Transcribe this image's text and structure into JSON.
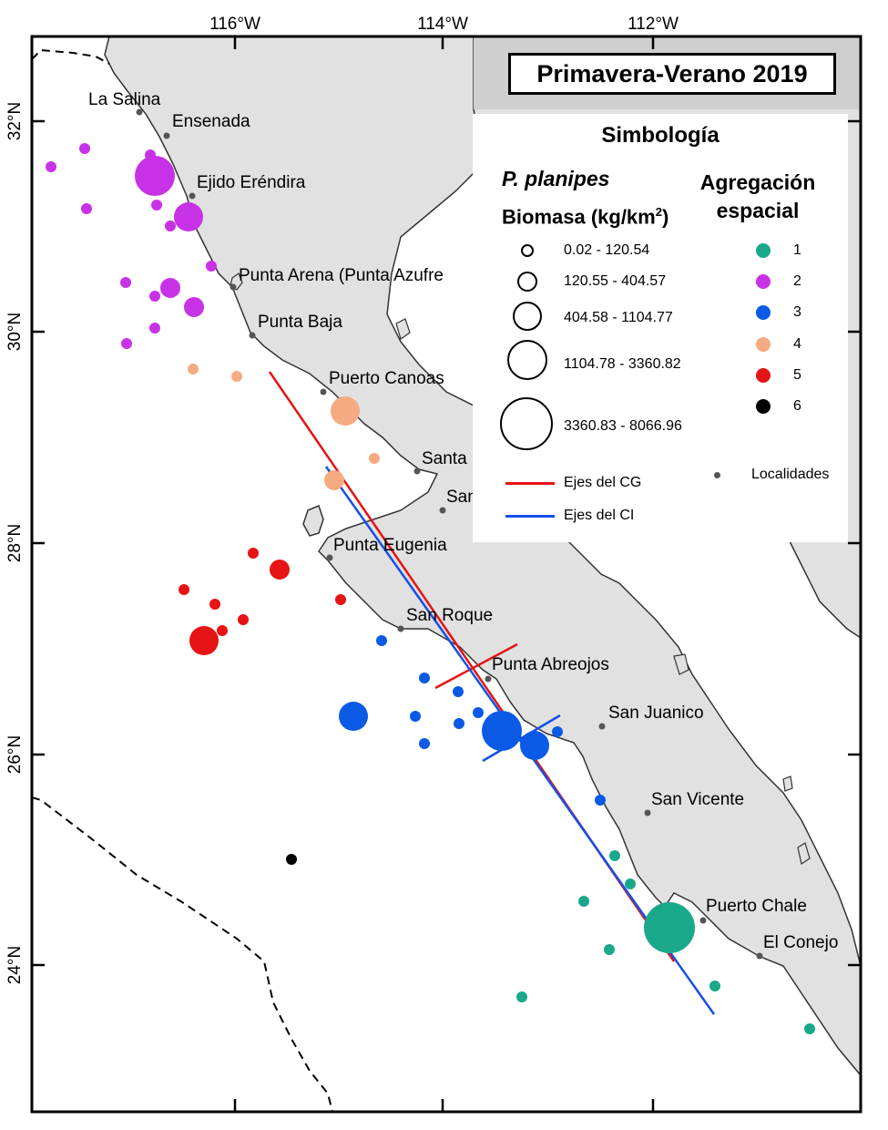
{
  "title": "Primavera-Verano 2019",
  "axes": {
    "lon_ticks": [
      "116°W",
      "114°W",
      "112°W"
    ],
    "lat_ticks": [
      "32°N",
      "30°N",
      "28°N",
      "26°N",
      "24°N"
    ]
  },
  "localities": [
    "La Salina",
    "Ensenada",
    "Ejido Eréndira",
    "Punta Arena (Punta Azufre",
    "Punta Baja",
    "Puerto Canoas",
    "Santa",
    "San",
    "Punta Eugenia",
    "San Roque",
    "Punta Abreojos",
    "San Juanico",
    "San Vicente",
    "Puerto Chale",
    "El Conejo"
  ],
  "legend": {
    "title": "Simbología",
    "species": "P. planipes",
    "biomass_label": "Biomasa (kg/km",
    "biomass_sup": "2",
    "biomass_close": ")",
    "biomass_classes": [
      "0.02 - 120.54",
      "120.55 - 404.57",
      "404.58 - 1104.77",
      "1104.78 - 3360.82",
      "3360.83 - 8066.96"
    ],
    "aggregation_title_1": "Agregación",
    "aggregation_title_2": "espacial",
    "aggregation_classes": [
      "1",
      "2",
      "3",
      "4",
      "5",
      "6"
    ],
    "lines": [
      "Ejes del CG",
      "Ejes del CI"
    ],
    "localities_label": "Localidades"
  },
  "colors": {
    "cluster_1": "#1aa88a",
    "cluster_2": "#c832e6",
    "cluster_3": "#0a5ae6",
    "cluster_4": "#f5aa82",
    "cluster_5": "#e61414",
    "cluster_6": "#000000",
    "land": "#e1e1e1",
    "cg_axis": "#e61414",
    "ci_axis": "#1450e6"
  }
}
